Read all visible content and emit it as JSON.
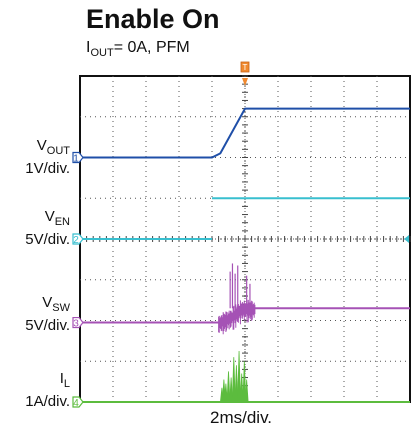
{
  "header": {
    "title": "Enable On",
    "subtitle_main": "I",
    "subtitle_sub": "OUT",
    "subtitle_rest": "= 0A, PFM"
  },
  "channels": [
    {
      "id": "ch1",
      "name_main": "V",
      "name_sub": "OUT",
      "scale": "1V/div.",
      "marker": "1",
      "color": "#1f4fa8"
    },
    {
      "id": "ch2",
      "name_main": "V",
      "name_sub": "EN",
      "scale": "5V/div.",
      "marker": "2",
      "color": "#38bfcf"
    },
    {
      "id": "ch3",
      "name_main": "V",
      "name_sub": "SW",
      "scale": "5V/div.",
      "marker": "3",
      "color": "#a552b5"
    },
    {
      "id": "ch4",
      "name_main": "I",
      "name_sub": "L",
      "scale": "1A/div.",
      "marker": "4",
      "color": "#5cbc3e"
    }
  ],
  "trigger_marker": "T",
  "xlabel": "2ms/div.",
  "chart_data": {
    "type": "line",
    "x_unit": "div",
    "xlim": [
      0,
      10
    ],
    "ylim": [
      0,
      8
    ],
    "grid": true,
    "series": [
      {
        "name": "VOUT",
        "x": [
          0,
          4.0,
          4.25,
          5.0,
          10
        ],
        "values": [
          6.0,
          6.0,
          6.1,
          7.2,
          7.2
        ]
      },
      {
        "name": "VEN",
        "x": [
          0,
          4.0,
          4.001,
          10
        ],
        "values": [
          4.0,
          4.0,
          5.0,
          5.0
        ]
      },
      {
        "name": "VSW",
        "x": [
          0,
          4.2,
          4.6,
          4.9,
          10
        ],
        "values": [
          1.95,
          1.95,
          2.1,
          2.3,
          2.3
        ]
      },
      {
        "name": "IL",
        "x": [
          0,
          4.2,
          10
        ],
        "values": [
          0.0,
          0.0,
          0.0
        ]
      }
    ],
    "il_pulses": {
      "x": [
        4.3,
        4.36,
        4.42,
        4.5,
        4.58,
        4.66,
        4.74,
        4.82,
        4.9,
        4.98,
        5.05
      ],
      "heights": [
        0.35,
        0.55,
        0.45,
        0.75,
        0.6,
        1.1,
        0.9,
        1.25,
        0.7,
        1.0,
        0.55
      ]
    },
    "sw_spikes": {
      "x": [
        4.55,
        4.62,
        4.7,
        4.78,
        5.05,
        5.15
      ],
      "heights": [
        0.9,
        1.1,
        0.85,
        1.05,
        0.8,
        0.6
      ]
    }
  }
}
